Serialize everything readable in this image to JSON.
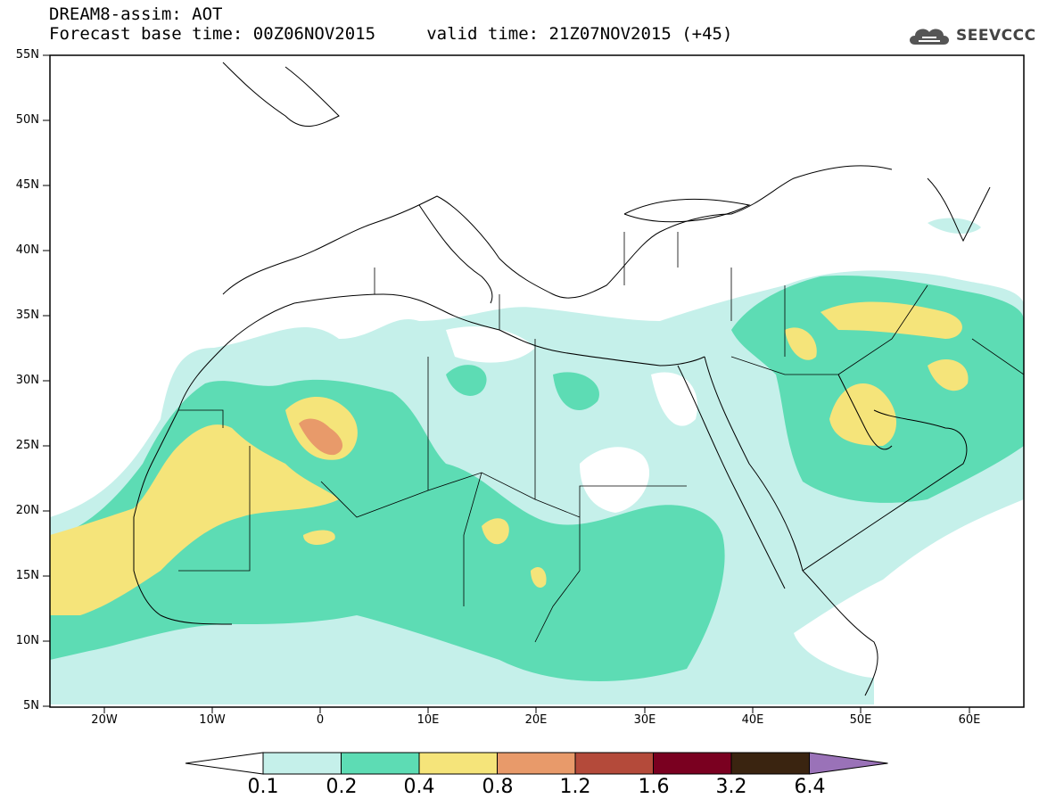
{
  "title": {
    "line1": "DREAM8-assim: AOT",
    "line2": "Forecast base time: 00Z06NOV2015     valid time: 21Z07NOV2015 (+45)"
  },
  "logo": {
    "text": "SEEVCCC",
    "icon": "cloud-icon"
  },
  "axes": {
    "lat_labels": [
      "55N",
      "50N",
      "45N",
      "40N",
      "35N",
      "30N",
      "25N",
      "20N",
      "15N",
      "10N",
      "5N"
    ],
    "lon_labels": [
      "20W",
      "10W",
      "0",
      "10E",
      "20E",
      "30E",
      "40E",
      "50E",
      "60E"
    ]
  },
  "legend": {
    "labels": [
      "0.1",
      "0.2",
      "0.4",
      "0.8",
      "1.2",
      "1.6",
      "3.2",
      "6.4"
    ],
    "colors": [
      "#ffffff",
      "#c5f0ea",
      "#5ddcb4",
      "#f5e47a",
      "#e89a6a",
      "#b44a3a",
      "#7a0020",
      "#3a2410",
      "#9a72b8"
    ]
  },
  "map": {
    "extent": {
      "lon_min": -25,
      "lon_max": 65,
      "lat_min": 5,
      "lat_max": 55
    },
    "variable": "AOT"
  }
}
